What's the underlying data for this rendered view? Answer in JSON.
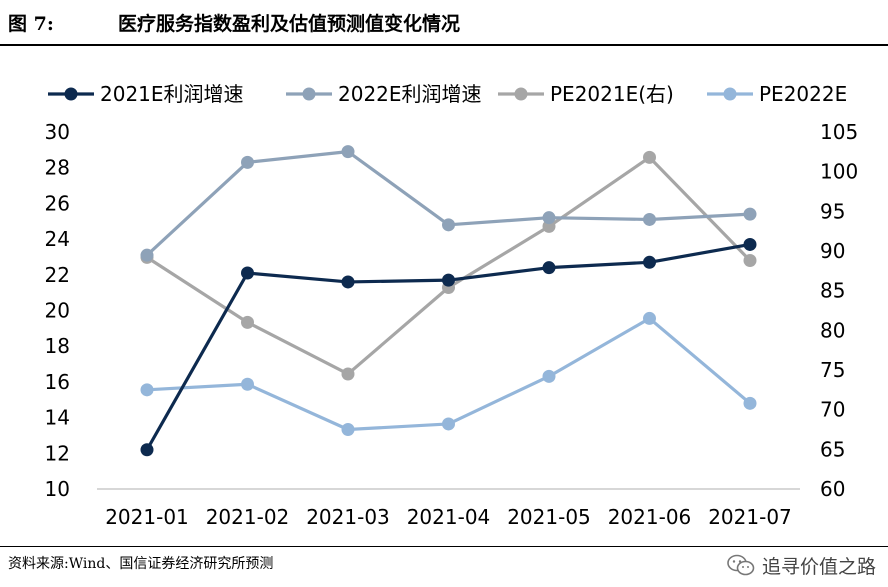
{
  "figure": {
    "prefix": "图 7:",
    "title": "医疗服务指数盈利及估值预测值变化情况"
  },
  "source": "资料来源:Wind、国信证券经济研究所预测",
  "watermark": {
    "text": "追寻价值之路",
    "icon": "wechat-icon"
  },
  "colors": {
    "s2021": "#0D2A4F",
    "s2022": "#8EA2B8",
    "pe2021": "#A6A6A6",
    "pe2022": "#94B6DA"
  },
  "chart_data": {
    "type": "line",
    "title": "医疗服务指数盈利及估值预测值变化情况",
    "categories": [
      "2021-01",
      "2021-02",
      "2021-03",
      "2021-04",
      "2021-05",
      "2021-06",
      "2021-07"
    ],
    "y_left": {
      "min": 10,
      "max": 30,
      "step": 2,
      "ticks": [
        "10",
        "12",
        "14",
        "16",
        "18",
        "20",
        "22",
        "24",
        "26",
        "28",
        "30"
      ]
    },
    "y_right": {
      "min": 60,
      "max": 105,
      "step": 5,
      "ticks": [
        "60",
        "65",
        "70",
        "75",
        "80",
        "85",
        "90",
        "95",
        "100",
        "105"
      ]
    },
    "grid": false,
    "legend_position": "top",
    "series": [
      {
        "name": "2021E利润增速",
        "axis": "left",
        "color_key": "s2021",
        "values": [
          12.2,
          22.1,
          21.6,
          21.7,
          22.4,
          22.7,
          23.7
        ]
      },
      {
        "name": "2022E利润增速",
        "axis": "left",
        "color_key": "s2022",
        "values": [
          23.1,
          28.3,
          28.9,
          24.8,
          25.2,
          25.1,
          25.4
        ]
      },
      {
        "name": "PE2021E(右)",
        "axis": "right",
        "color_key": "pe2021",
        "values": [
          89.2,
          81.0,
          74.5,
          85.4,
          93.1,
          101.8,
          88.8
        ]
      },
      {
        "name": "PE2022E",
        "axis": "right",
        "color_key": "pe2022",
        "values": [
          72.5,
          73.2,
          67.5,
          68.2,
          74.2,
          81.5,
          70.8
        ]
      }
    ]
  }
}
